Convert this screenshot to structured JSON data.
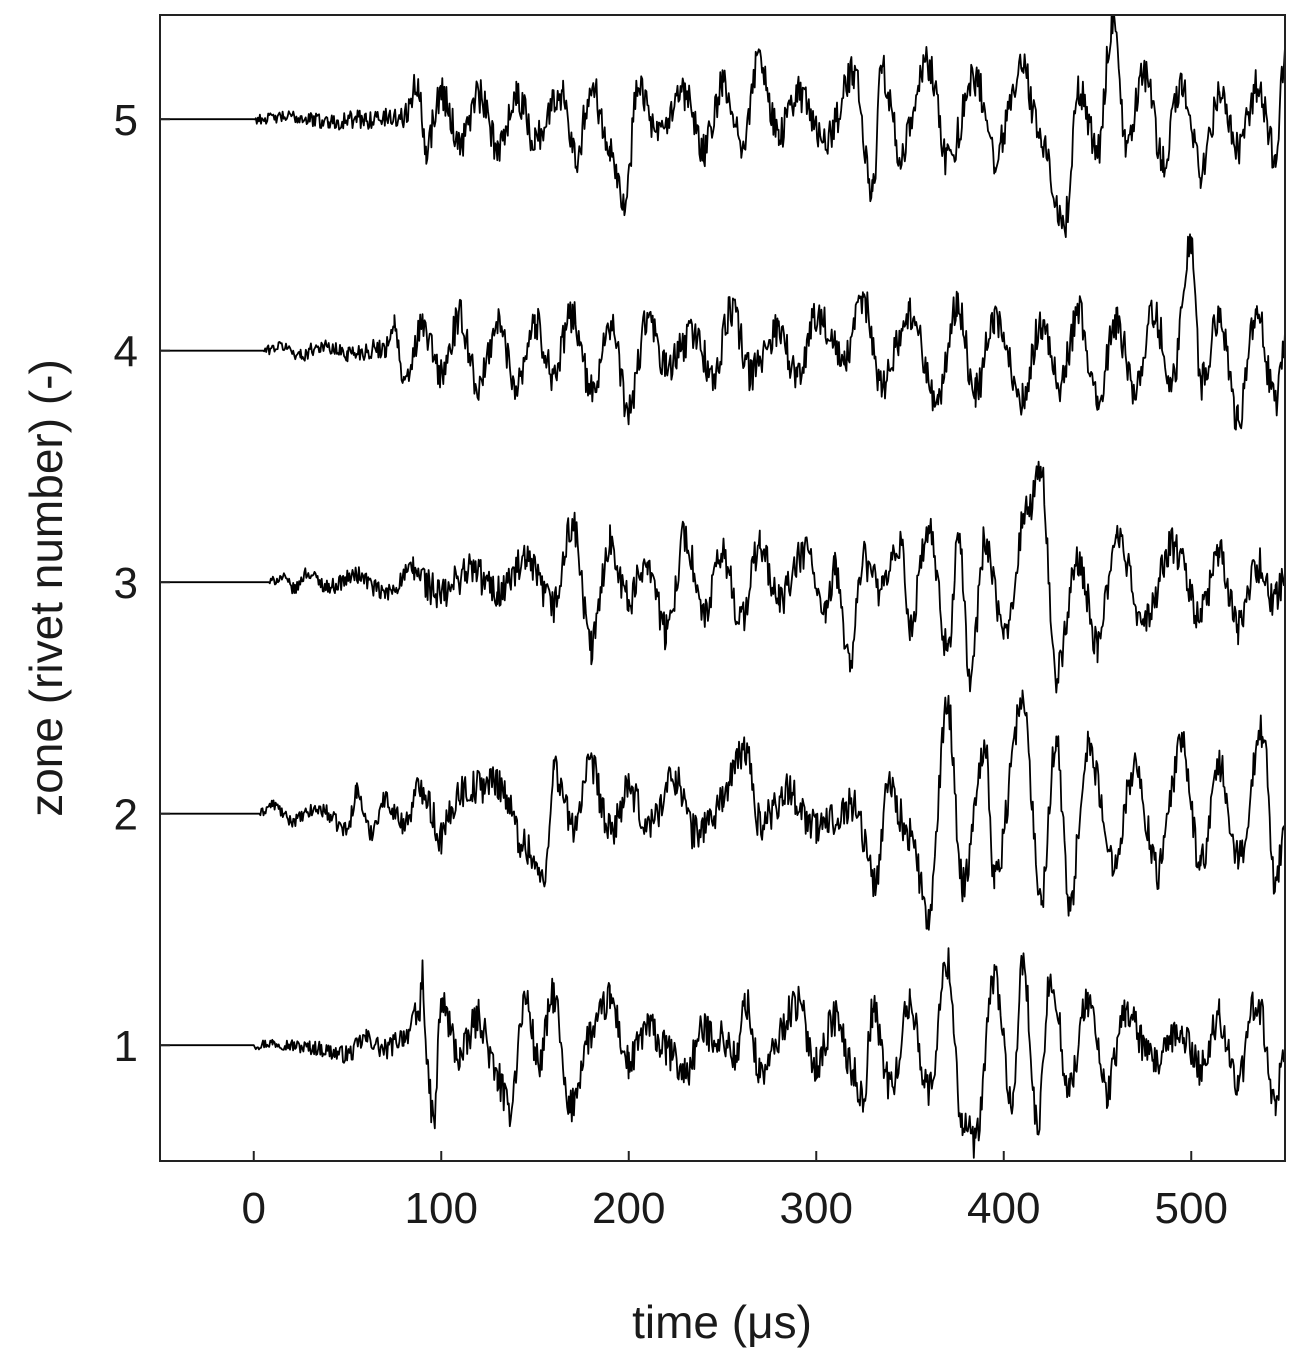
{
  "chart_data": {
    "type": "line",
    "title": "",
    "xlabel": "time (μs)",
    "ylabel": "zone (rivet number) (-)",
    "xlim": [
      -50,
      550
    ],
    "ylim": [
      0.5,
      5.45
    ],
    "x_ticks": [
      0,
      100,
      200,
      300,
      400,
      500
    ],
    "y_ticks": [
      1,
      2,
      3,
      4,
      5
    ],
    "grid": false,
    "legend": "none",
    "line_color": "#000000",
    "series": [
      {
        "zone": 1,
        "onset_us": 0,
        "peak_amplitude": 0.44,
        "values": [
          [
            -50,
            1.0
          ],
          [
            0,
            1.0
          ],
          [
            10,
            1.01
          ],
          [
            30,
            0.99
          ],
          [
            50,
            0.96
          ],
          [
            60,
            1.03
          ],
          [
            70,
            0.98
          ],
          [
            80,
            1.04
          ],
          [
            88,
            1.12
          ],
          [
            90,
            1.3
          ],
          [
            93,
            0.85
          ],
          [
            96,
            0.66
          ],
          [
            100,
            1.18
          ],
          [
            110,
            0.95
          ],
          [
            120,
            1.12
          ],
          [
            130,
            0.86
          ],
          [
            136,
            0.72
          ],
          [
            145,
            1.2
          ],
          [
            152,
            0.92
          ],
          [
            160,
            1.22
          ],
          [
            168,
            0.72
          ],
          [
            180,
            1.05
          ],
          [
            190,
            1.2
          ],
          [
            200,
            0.92
          ],
          [
            210,
            1.08
          ],
          [
            220,
            0.98
          ],
          [
            230,
            0.88
          ],
          [
            240,
            1.06
          ],
          [
            250,
            1.03
          ],
          [
            258,
            0.94
          ],
          [
            262,
            1.2
          ],
          [
            270,
            0.88
          ],
          [
            290,
            1.18
          ],
          [
            300,
            0.92
          ],
          [
            310,
            1.12
          ],
          [
            320,
            0.88
          ],
          [
            325,
            0.76
          ],
          [
            330,
            1.15
          ],
          [
            340,
            0.82
          ],
          [
            350,
            1.18
          ],
          [
            360,
            0.8
          ],
          [
            370,
            1.36
          ],
          [
            378,
            0.66
          ],
          [
            385,
            0.58
          ],
          [
            395,
            1.3
          ],
          [
            405,
            0.72
          ],
          [
            410,
            1.38
          ],
          [
            418,
            0.64
          ],
          [
            425,
            1.3
          ],
          [
            435,
            0.82
          ],
          [
            445,
            1.2
          ],
          [
            455,
            0.8
          ],
          [
            465,
            1.15
          ],
          [
            480,
            0.92
          ],
          [
            495,
            1.05
          ],
          [
            505,
            0.9
          ],
          [
            515,
            1.12
          ],
          [
            525,
            0.84
          ],
          [
            535,
            1.2
          ],
          [
            545,
            0.76
          ],
          [
            550,
            1.02
          ]
        ]
      },
      {
        "zone": 2,
        "onset_us": 3,
        "peak_amplitude": 0.5,
        "values": [
          [
            -50,
            2.0
          ],
          [
            3,
            2.0
          ],
          [
            10,
            2.04
          ],
          [
            20,
            1.97
          ],
          [
            35,
            2.02
          ],
          [
            50,
            1.93
          ],
          [
            55,
            2.1
          ],
          [
            62,
            1.92
          ],
          [
            70,
            2.06
          ],
          [
            80,
            1.96
          ],
          [
            90,
            2.12
          ],
          [
            100,
            1.9
          ],
          [
            110,
            2.1
          ],
          [
            130,
            2.14
          ],
          [
            145,
            1.86
          ],
          [
            155,
            1.7
          ],
          [
            160,
            2.2
          ],
          [
            170,
            1.95
          ],
          [
            180,
            2.2
          ],
          [
            190,
            1.92
          ],
          [
            200,
            2.1
          ],
          [
            210,
            1.95
          ],
          [
            225,
            2.16
          ],
          [
            235,
            1.92
          ],
          [
            245,
            1.98
          ],
          [
            250,
            2.08
          ],
          [
            262,
            2.28
          ],
          [
            270,
            1.96
          ],
          [
            285,
            2.1
          ],
          [
            300,
            1.94
          ],
          [
            320,
            2.04
          ],
          [
            332,
            1.7
          ],
          [
            338,
            2.14
          ],
          [
            350,
            1.9
          ],
          [
            360,
            1.55
          ],
          [
            370,
            2.48
          ],
          [
            378,
            1.7
          ],
          [
            390,
            2.3
          ],
          [
            395,
            1.72
          ],
          [
            410,
            2.48
          ],
          [
            420,
            1.64
          ],
          [
            428,
            2.34
          ],
          [
            435,
            1.6
          ],
          [
            445,
            2.3
          ],
          [
            458,
            1.8
          ],
          [
            470,
            2.2
          ],
          [
            482,
            1.75
          ],
          [
            495,
            2.3
          ],
          [
            505,
            1.78
          ],
          [
            515,
            2.2
          ],
          [
            525,
            1.8
          ],
          [
            538,
            2.36
          ],
          [
            545,
            1.7
          ],
          [
            550,
            1.95
          ]
        ]
      },
      {
        "zone": 3,
        "onset_us": 8,
        "peak_amplitude": 0.48,
        "values": [
          [
            -50,
            3.0
          ],
          [
            8,
            3.0
          ],
          [
            15,
            3.02
          ],
          [
            22,
            2.97
          ],
          [
            28,
            3.04
          ],
          [
            40,
            2.98
          ],
          [
            55,
            3.03
          ],
          [
            70,
            2.95
          ],
          [
            85,
            3.05
          ],
          [
            100,
            2.94
          ],
          [
            115,
            3.06
          ],
          [
            130,
            2.96
          ],
          [
            145,
            3.08
          ],
          [
            160,
            2.9
          ],
          [
            170,
            3.25
          ],
          [
            180,
            2.72
          ],
          [
            190,
            3.18
          ],
          [
            200,
            2.92
          ],
          [
            210,
            3.1
          ],
          [
            220,
            2.78
          ],
          [
            230,
            3.2
          ],
          [
            240,
            2.85
          ],
          [
            250,
            3.12
          ],
          [
            260,
            2.84
          ],
          [
            270,
            3.16
          ],
          [
            280,
            2.92
          ],
          [
            295,
            3.14
          ],
          [
            305,
            2.84
          ],
          [
            310,
            3.06
          ],
          [
            318,
            2.66
          ],
          [
            325,
            3.1
          ],
          [
            335,
            2.96
          ],
          [
            345,
            3.16
          ],
          [
            350,
            2.82
          ],
          [
            360,
            3.22
          ],
          [
            370,
            2.7
          ],
          [
            376,
            3.2
          ],
          [
            382,
            2.58
          ],
          [
            390,
            3.18
          ],
          [
            400,
            2.76
          ],
          [
            412,
            3.3
          ],
          [
            420,
            3.47
          ],
          [
            428,
            2.6
          ],
          [
            440,
            3.1
          ],
          [
            450,
            2.72
          ],
          [
            460,
            3.2
          ],
          [
            475,
            2.82
          ],
          [
            490,
            3.16
          ],
          [
            505,
            2.86
          ],
          [
            515,
            3.12
          ],
          [
            525,
            2.8
          ],
          [
            535,
            3.08
          ],
          [
            545,
            2.92
          ],
          [
            550,
            3.06
          ]
        ]
      },
      {
        "zone": 4,
        "onset_us": 5,
        "peak_amplitude": 0.5,
        "values": [
          [
            -50,
            4.0
          ],
          [
            5,
            4.0
          ],
          [
            15,
            4.02
          ],
          [
            25,
            3.98
          ],
          [
            35,
            4.02
          ],
          [
            50,
            3.99
          ],
          [
            70,
            4.01
          ],
          [
            75,
            4.12
          ],
          [
            80,
            3.85
          ],
          [
            90,
            4.1
          ],
          [
            100,
            3.9
          ],
          [
            110,
            4.14
          ],
          [
            120,
            3.84
          ],
          [
            130,
            4.12
          ],
          [
            140,
            3.86
          ],
          [
            150,
            4.12
          ],
          [
            160,
            3.9
          ],
          [
            170,
            4.16
          ],
          [
            180,
            3.82
          ],
          [
            190,
            4.12
          ],
          [
            200,
            3.74
          ],
          [
            210,
            4.14
          ],
          [
            220,
            3.92
          ],
          [
            235,
            4.08
          ],
          [
            245,
            3.88
          ],
          [
            255,
            4.18
          ],
          [
            265,
            3.9
          ],
          [
            280,
            4.1
          ],
          [
            290,
            3.88
          ],
          [
            300,
            4.16
          ],
          [
            315,
            3.95
          ],
          [
            325,
            4.22
          ],
          [
            335,
            3.86
          ],
          [
            350,
            4.16
          ],
          [
            365,
            3.78
          ],
          [
            375,
            4.2
          ],
          [
            385,
            3.82
          ],
          [
            395,
            4.14
          ],
          [
            410,
            3.8
          ],
          [
            420,
            4.12
          ],
          [
            430,
            3.86
          ],
          [
            440,
            4.16
          ],
          [
            450,
            3.78
          ],
          [
            460,
            4.12
          ],
          [
            470,
            3.84
          ],
          [
            480,
            4.16
          ],
          [
            490,
            3.88
          ],
          [
            500,
            4.48
          ],
          [
            505,
            3.86
          ],
          [
            515,
            4.16
          ],
          [
            525,
            3.7
          ],
          [
            535,
            4.16
          ],
          [
            545,
            3.76
          ],
          [
            550,
            4.02
          ]
        ]
      },
      {
        "zone": 5,
        "onset_us": 0,
        "peak_amplitude": 0.5,
        "values": [
          [
            -50,
            5.0
          ],
          [
            0,
            5.0
          ],
          [
            20,
            5.01
          ],
          [
            40,
            4.99
          ],
          [
            60,
            5.0
          ],
          [
            80,
            5.01
          ],
          [
            88,
            5.16
          ],
          [
            92,
            4.88
          ],
          [
            100,
            5.12
          ],
          [
            110,
            4.9
          ],
          [
            120,
            5.1
          ],
          [
            130,
            4.88
          ],
          [
            140,
            5.1
          ],
          [
            150,
            4.92
          ],
          [
            165,
            5.12
          ],
          [
            172,
            4.84
          ],
          [
            180,
            5.14
          ],
          [
            190,
            4.9
          ],
          [
            198,
            4.62
          ],
          [
            205,
            5.18
          ],
          [
            215,
            4.92
          ],
          [
            230,
            5.1
          ],
          [
            240,
            4.86
          ],
          [
            250,
            5.14
          ],
          [
            260,
            4.9
          ],
          [
            270,
            5.26
          ],
          [
            280,
            4.92
          ],
          [
            290,
            5.12
          ],
          [
            305,
            4.9
          ],
          [
            320,
            5.2
          ],
          [
            330,
            4.68
          ],
          [
            335,
            5.22
          ],
          [
            345,
            4.86
          ],
          [
            360,
            5.24
          ],
          [
            370,
            4.82
          ],
          [
            385,
            5.18
          ],
          [
            395,
            4.84
          ],
          [
            410,
            5.22
          ],
          [
            420,
            4.9
          ],
          [
            432,
            4.52
          ],
          [
            440,
            5.14
          ],
          [
            450,
            4.86
          ],
          [
            458,
            5.42
          ],
          [
            465,
            4.9
          ],
          [
            475,
            5.2
          ],
          [
            485,
            4.82
          ],
          [
            495,
            5.16
          ],
          [
            505,
            4.78
          ],
          [
            515,
            5.1
          ],
          [
            525,
            4.86
          ],
          [
            535,
            5.14
          ],
          [
            545,
            4.84
          ],
          [
            550,
            5.28
          ]
        ]
      }
    ]
  }
}
